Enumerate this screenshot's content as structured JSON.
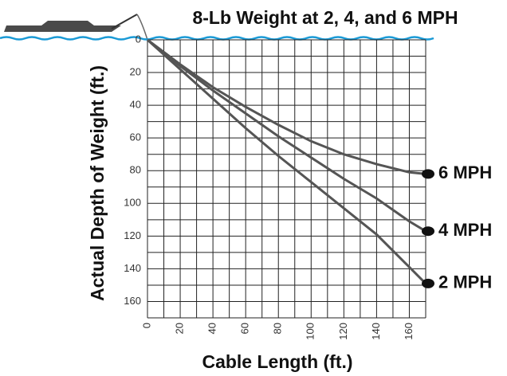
{
  "chart_data": {
    "type": "line",
    "title": "8-Lb Weight at 2, 4, and 6 MPH",
    "x_label": "Cable Length (ft.)",
    "y_label": "Actual Depth of Weight (ft.)",
    "x": [
      0,
      20,
      40,
      60,
      80,
      100,
      120,
      140,
      160,
      170
    ],
    "series": [
      {
        "name": "6 MPH",
        "color": "#555555",
        "values": [
          0,
          15,
          29,
          41,
          52,
          62,
          70,
          76,
          81,
          82
        ]
      },
      {
        "name": "4 MPH",
        "color": "#555555",
        "values": [
          0,
          16,
          31,
          45,
          59,
          72,
          85,
          97,
          111,
          117
        ]
      },
      {
        "name": "2 MPH",
        "color": "#555555",
        "values": [
          0,
          18,
          36,
          54,
          71,
          87,
          103,
          119,
          139,
          149
        ]
      }
    ],
    "xlim": [
      0,
      170
    ],
    "ylim": [
      0,
      170
    ],
    "y_inverted": true,
    "xticks": [
      0,
      20,
      40,
      60,
      80,
      100,
      120,
      140,
      160
    ],
    "yticks": [
      0,
      20,
      40,
      60,
      80,
      100,
      120,
      140,
      160
    ],
    "x_minor_ticks": [
      10,
      30,
      50,
      70,
      90,
      110,
      130,
      150,
      170
    ],
    "y_minor_ticks": [
      10,
      30,
      50,
      70,
      90,
      110,
      130,
      150,
      170
    ],
    "grid": true
  }
}
